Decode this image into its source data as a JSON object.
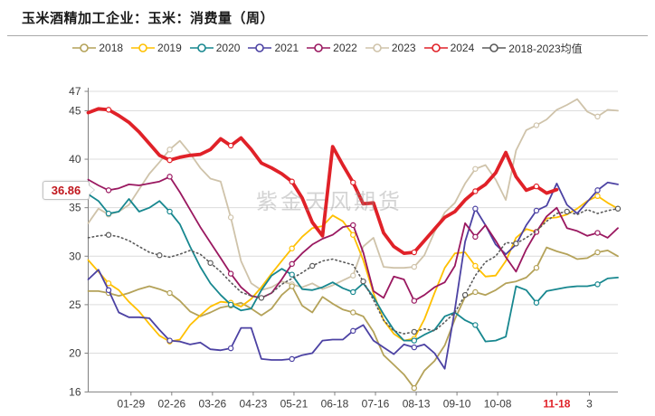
{
  "title": "玉米酒精加工企业：玉米：消费量（周）",
  "watermark": "紫金天风期货",
  "callout": {
    "value": "36.86"
  },
  "colors": {
    "grid": "#dcdcdc",
    "axis": "#808080",
    "tick_text": "#3c3c3c",
    "highlight_tick": "#e02128",
    "callout_text": "#c0161c"
  },
  "chart_data": {
    "type": "line",
    "title": "玉米酒精加工企业：玉米：消费量（周）",
    "xlabel": "",
    "ylabel": "",
    "ylim": [
      16,
      47
    ],
    "grid": "horizontal",
    "legend_position": "top",
    "y_ticks": [
      47,
      45,
      40,
      35,
      30,
      25,
      20,
      16
    ],
    "x_ticks": [
      {
        "label": "01-29",
        "week": 4.2,
        "highlight": false
      },
      {
        "label": "02-26",
        "week": 8.2,
        "highlight": false
      },
      {
        "label": "03-26",
        "week": 12.2,
        "highlight": false
      },
      {
        "label": "04-23",
        "week": 16.2,
        "highlight": false
      },
      {
        "label": "05-21",
        "week": 20.2,
        "highlight": false
      },
      {
        "label": "06-18",
        "week": 24.2,
        "highlight": false
      },
      {
        "label": "07-16",
        "week": 28.2,
        "highlight": false
      },
      {
        "label": "08-13",
        "week": 32.2,
        "highlight": false
      },
      {
        "label": "09-10",
        "week": 36.2,
        "highlight": false
      },
      {
        "label": "10-08",
        "week": 40.2,
        "highlight": false
      },
      {
        "label": "11-18",
        "week": 46.0,
        "highlight": true
      },
      {
        "label": "3",
        "week": 49.2,
        "highlight": false
      }
    ],
    "x_unit": "week-of-year",
    "series": [
      {
        "label": "2023",
        "color": "#cfc3aa",
        "width": 1.8,
        "dash": "",
        "marker_every": 6,
        "legend_index": 5,
        "values": [
          33.4,
          34.9,
          34.3,
          34.6,
          35.3,
          36.9,
          38.5,
          39.7,
          41.0,
          41.9,
          40.6,
          39.1,
          38.0,
          37.7,
          34.0,
          29.5,
          27.2,
          26.5,
          26.8,
          27.4,
          27.1,
          26.8,
          27.2,
          26.6,
          27.0,
          27.5,
          28.0,
          31.0,
          31.9,
          28.9,
          28.8,
          28.8,
          28.9,
          30.1,
          32.5,
          34.5,
          35.5,
          37.5,
          39.0,
          39.4,
          37.9,
          35.8,
          40.9,
          43.0,
          43.5,
          44.1,
          45.1,
          45.6,
          46.2,
          44.9,
          44.4,
          45.1,
          45.0
        ]
      },
      {
        "label": "2018",
        "color": "#b4a259",
        "width": 1.8,
        "dash": "",
        "marker_every": 6,
        "legend_index": 0,
        "values": [
          26.4,
          26.4,
          26.2,
          25.9,
          26.2,
          26.6,
          26.9,
          26.6,
          26.2,
          25.4,
          24.3,
          23.8,
          24.2,
          24.7,
          24.9,
          25.2,
          24.6,
          23.9,
          24.6,
          26.0,
          26.9,
          24.9,
          24.2,
          25.8,
          25.1,
          24.5,
          24.2,
          23.8,
          22.2,
          19.8,
          18.8,
          17.8,
          16.4,
          18.2,
          19.2,
          20.8,
          23.5,
          25.8,
          26.3,
          26.0,
          26.5,
          27.2,
          27.4,
          27.8,
          28.8,
          30.9,
          30.5,
          30.2,
          29.7,
          29.8,
          30.4,
          30.6,
          30.0
        ]
      },
      {
        "label": "2019",
        "color": "#ffc000",
        "width": 1.8,
        "dash": "",
        "marker_every": 6,
        "legend_index": 1,
        "values": [
          29.6,
          28.4,
          27.2,
          26.5,
          25.3,
          24.3,
          23.0,
          21.8,
          21.2,
          21.4,
          22.9,
          23.9,
          24.8,
          25.3,
          25.2,
          24.8,
          25.6,
          26.8,
          28.2,
          29.5,
          30.8,
          32.0,
          32.9,
          33.1,
          34.2,
          33.6,
          32.2,
          29.6,
          26.2,
          23.4,
          22.0,
          21.3,
          21.5,
          23.5,
          26.2,
          28.8,
          30.3,
          30.4,
          29.0,
          27.9,
          28.0,
          29.5,
          31.9,
          32.8,
          32.5,
          33.9,
          34.0,
          34.3,
          34.9,
          35.7,
          36.2,
          35.5,
          34.9
        ]
      },
      {
        "label": "2020",
        "color": "#17878f",
        "width": 1.8,
        "dash": "",
        "marker_every": 6,
        "legend_index": 2,
        "values": [
          36.4,
          35.7,
          34.4,
          34.6,
          35.9,
          34.6,
          35.0,
          35.7,
          34.6,
          33.3,
          31.0,
          28.9,
          27.2,
          26.0,
          25.0,
          24.4,
          24.6,
          26.5,
          28.0,
          28.7,
          28.1,
          26.6,
          26.5,
          26.8,
          27.3,
          26.7,
          26.3,
          27.2,
          25.8,
          24.0,
          22.4,
          21.3,
          21.3,
          21.9,
          22.4,
          23.8,
          24.2,
          23.4,
          22.9,
          21.2,
          21.3,
          21.7,
          26.9,
          26.5,
          25.2,
          26.4,
          26.6,
          26.8,
          26.9,
          26.9,
          27.1,
          27.7,
          27.8
        ]
      },
      {
        "label": "2021",
        "color": "#4c42a3",
        "width": 1.8,
        "dash": "",
        "marker_every": 6,
        "legend_index": 3,
        "values": [
          27.6,
          28.6,
          26.5,
          24.2,
          23.7,
          23.7,
          23.6,
          22.4,
          21.3,
          21.2,
          20.9,
          21.1,
          20.4,
          20.3,
          20.5,
          22.6,
          22.6,
          19.4,
          19.3,
          19.3,
          19.4,
          19.8,
          20.0,
          21.3,
          21.4,
          21.4,
          22.3,
          22.9,
          21.3,
          20.6,
          19.9,
          20.9,
          20.6,
          20.9,
          20.0,
          18.4,
          24.5,
          31.5,
          34.9,
          33.2,
          31.2,
          30.2,
          31.2,
          33.2,
          34.7,
          35.2,
          37.5,
          35.3,
          34.4,
          35.6,
          36.8,
          37.6,
          37.4
        ]
      },
      {
        "label": "2022",
        "color": "#9a1860",
        "width": 1.8,
        "dash": "",
        "marker_every": 6,
        "legend_index": 4,
        "values": [
          37.9,
          37.3,
          36.8,
          37.0,
          37.4,
          37.3,
          37.5,
          37.7,
          38.2,
          36.6,
          34.8,
          33.0,
          31.4,
          29.8,
          28.2,
          26.8,
          25.9,
          25.7,
          26.2,
          27.6,
          29.2,
          30.3,
          31.2,
          31.8,
          32.2,
          33.0,
          33.2,
          30.4,
          26.4,
          25.7,
          27.9,
          27.6,
          25.4,
          26.0,
          26.8,
          27.3,
          29.0,
          33.4,
          32.0,
          33.2,
          31.6,
          29.9,
          28.4,
          30.7,
          32.5,
          34.1,
          35.0,
          32.9,
          32.6,
          32.1,
          32.4,
          31.9,
          32.9
        ]
      },
      {
        "label": "2018-2023均值",
        "color": "#5a5a5a",
        "width": 1.6,
        "dash": "1.5 3.2",
        "marker_every": 5,
        "legend_index": 7,
        "values": [
          31.9,
          32.1,
          32.2,
          32.0,
          31.6,
          31.0,
          30.4,
          30.1,
          29.9,
          30.2,
          30.6,
          30.2,
          29.3,
          28.4,
          27.3,
          26.3,
          25.9,
          25.7,
          26.2,
          27.1,
          27.7,
          28.3,
          29.0,
          29.5,
          29.7,
          29.4,
          29.1,
          27.4,
          25.5,
          23.4,
          22.3,
          22.0,
          22.2,
          22.5,
          22.3,
          23.2,
          24.2,
          26.0,
          28.0,
          29.4,
          30.0,
          31.4,
          31.3,
          31.9,
          32.6,
          33.6,
          34.4,
          34.6,
          34.3,
          34.8,
          34.4,
          34.7,
          34.9
        ]
      },
      {
        "label": "2024",
        "color": "#e02128",
        "width": 3.8,
        "dash": "",
        "marker_every": 6,
        "legend_index": 6,
        "values": [
          44.8,
          45.2,
          45.1,
          44.5,
          43.8,
          42.8,
          41.6,
          40.4,
          39.9,
          40.2,
          40.4,
          40.5,
          41.0,
          42.1,
          41.4,
          42.2,
          41.0,
          39.6,
          39.1,
          38.5,
          37.7,
          36.0,
          33.5,
          32.1,
          41.3,
          39.4,
          37.6,
          35.4,
          35.5,
          32.4,
          31.0,
          30.3,
          30.4,
          31.6,
          32.8,
          34.0,
          34.6,
          35.8,
          36.7,
          37.4,
          38.6,
          40.7,
          38.2,
          36.8,
          37.2,
          36.5,
          36.86
        ]
      }
    ],
    "annotations": [
      {
        "text": "36.86",
        "series": "2024",
        "position": "last-value",
        "color": "#c0161c"
      }
    ]
  }
}
